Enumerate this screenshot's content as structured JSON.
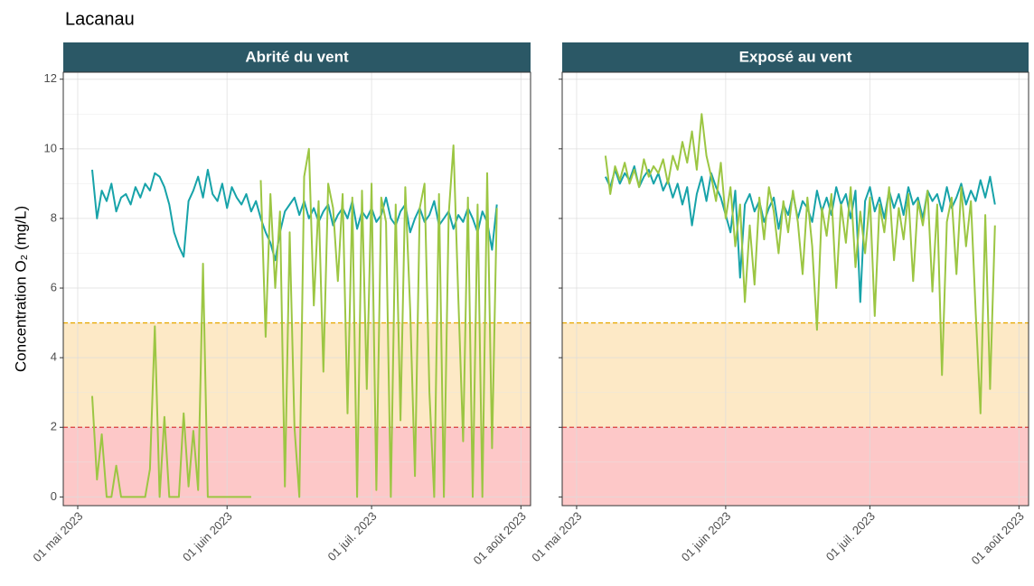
{
  "chart_data": {
    "type": "line",
    "title": "Lacanau",
    "ylabel": "Concentration  O₂ (mg/L)",
    "xlim": [
      "2023-04-28",
      "2023-08-03"
    ],
    "xticks": [
      {
        "value": "2023-05-01",
        "label": "01 mai 2023"
      },
      {
        "value": "2023-06-01",
        "label": "01 juin 2023"
      },
      {
        "value": "2023-07-01",
        "label": "01 juil. 2023"
      },
      {
        "value": "2023-08-01",
        "label": "01 août 2023"
      }
    ],
    "ylim": [
      -0.25,
      12.2
    ],
    "yticks": [
      0,
      2,
      4,
      6,
      8,
      10,
      12
    ],
    "yminor": [
      1,
      3,
      5,
      7,
      9,
      11
    ],
    "grid": true,
    "bands": [
      {
        "from": 2,
        "to": 5,
        "color": "#fde9c6"
      },
      {
        "to": 2,
        "color": "#fdc8c8"
      }
    ],
    "hlines": [
      {
        "value": 5,
        "color": "#e6a800"
      },
      {
        "value": 2,
        "color": "#d93b3b"
      }
    ],
    "x": [
      "2023-05-04",
      "2023-05-05",
      "2023-05-06",
      "2023-05-07",
      "2023-05-08",
      "2023-05-09",
      "2023-05-10",
      "2023-05-11",
      "2023-05-12",
      "2023-05-13",
      "2023-05-14",
      "2023-05-15",
      "2023-05-16",
      "2023-05-17",
      "2023-05-18",
      "2023-05-19",
      "2023-05-20",
      "2023-05-21",
      "2023-05-22",
      "2023-05-23",
      "2023-05-24",
      "2023-05-25",
      "2023-05-26",
      "2023-05-27",
      "2023-05-28",
      "2023-05-29",
      "2023-05-30",
      "2023-05-31",
      "2023-06-01",
      "2023-06-02",
      "2023-06-03",
      "2023-06-04",
      "2023-06-05",
      "2023-06-06",
      "2023-06-07",
      "2023-06-08",
      "2023-06-09",
      "2023-06-10",
      "2023-06-11",
      "2023-06-12",
      "2023-06-13",
      "2023-06-14",
      "2023-06-15",
      "2023-06-16",
      "2023-06-17",
      "2023-06-18",
      "2023-06-19",
      "2023-06-20",
      "2023-06-21",
      "2023-06-22",
      "2023-06-23",
      "2023-06-24",
      "2023-06-25",
      "2023-06-26",
      "2023-06-27",
      "2023-06-28",
      "2023-06-29",
      "2023-06-30",
      "2023-07-01",
      "2023-07-02",
      "2023-07-03",
      "2023-07-04",
      "2023-07-05",
      "2023-07-06",
      "2023-07-07",
      "2023-07-08",
      "2023-07-09",
      "2023-07-10",
      "2023-07-11",
      "2023-07-12",
      "2023-07-13",
      "2023-07-14",
      "2023-07-15",
      "2023-07-16",
      "2023-07-17",
      "2023-07-18",
      "2023-07-19",
      "2023-07-20",
      "2023-07-21",
      "2023-07-22",
      "2023-07-23",
      "2023-07-24",
      "2023-07-25",
      "2023-07-26",
      "2023-07-27"
    ],
    "facets": [
      {
        "strip": "Abrité du vent",
        "series": [
          {
            "color": "#17a3a9",
            "values": [
              9.4,
              8.0,
              8.8,
              8.5,
              9.0,
              8.2,
              8.6,
              8.7,
              8.4,
              8.9,
              8.6,
              9.0,
              8.8,
              9.3,
              9.2,
              8.9,
              8.4,
              7.6,
              7.2,
              6.9,
              8.5,
              8.8,
              9.2,
              8.6,
              9.4,
              8.7,
              8.5,
              9.0,
              8.3,
              8.9,
              8.6,
              8.4,
              8.7,
              8.2,
              8.5,
              8.0,
              7.6,
              7.3,
              6.8,
              7.6,
              8.2,
              8.4,
              8.6,
              8.1,
              8.5,
              8.0,
              8.3,
              7.9,
              8.2,
              8.4,
              7.8,
              8.1,
              8.3,
              8.0,
              8.5,
              7.7,
              8.2,
              8.0,
              8.3,
              7.9,
              8.1,
              8.6,
              8.0,
              7.8,
              8.2,
              8.4,
              7.6,
              8.0,
              8.3,
              7.9,
              8.1,
              8.5,
              7.8,
              8.0,
              8.2,
              7.7,
              8.1,
              7.9,
              8.3,
              8.0,
              7.6,
              8.2,
              7.9,
              7.1,
              8.4
            ]
          },
          {
            "color": "#9cc643",
            "values": [
              2.9,
              0.5,
              1.8,
              0,
              0,
              0.9,
              0,
              0,
              0,
              0,
              0,
              0,
              0.8,
              4.9,
              0,
              2.3,
              0,
              0,
              0,
              2.4,
              0.3,
              1.9,
              0.2,
              6.7,
              0,
              0,
              0,
              0,
              0,
              0,
              0,
              0,
              0,
              0,
              null,
              9.1,
              4.6,
              8.7,
              6.0,
              8.2,
              0.3,
              7.6,
              2.0,
              0,
              9.2,
              10.0,
              5.5,
              8.5,
              3.6,
              9.0,
              8.3,
              6.2,
              8.7,
              2.4,
              8.6,
              0,
              8.8,
              3.1,
              9.0,
              0.2,
              8.6,
              7.9,
              0,
              8.4,
              2.2,
              8.9,
              5.4,
              0.6,
              8.3,
              9.0,
              3.0,
              0,
              8.7,
              0,
              8.1,
              10.1,
              5.7,
              1.6,
              8.6,
              0,
              8.4,
              0,
              9.3,
              1.4,
              8.3
            ]
          }
        ]
      },
      {
        "strip": "Exposé au vent",
        "series": [
          {
            "color": "#17a3a9",
            "values": [
              null,
              null,
              null,
              9.2,
              8.9,
              9.4,
              9.0,
              9.3,
              9.1,
              9.5,
              8.9,
              9.2,
              9.4,
              9.0,
              9.3,
              8.8,
              9.1,
              8.6,
              9.0,
              8.4,
              8.9,
              7.8,
              8.7,
              9.2,
              8.5,
              9.3,
              8.9,
              8.6,
              8.1,
              7.6,
              8.8,
              6.3,
              8.4,
              8.7,
              8.2,
              8.5,
              7.9,
              8.3,
              8.6,
              7.7,
              8.4,
              8.1,
              8.7,
              8.0,
              8.5,
              8.3,
              7.9,
              8.8,
              8.2,
              8.6,
              8.1,
              8.9,
              8.4,
              8.7,
              8.0,
              8.8,
              5.6,
              8.5,
              8.9,
              8.2,
              8.6,
              8.0,
              8.8,
              8.3,
              8.7,
              8.1,
              8.9,
              8.4,
              8.6,
              8.0,
              8.8,
              8.5,
              8.7,
              8.2,
              8.9,
              8.3,
              8.6,
              9.0,
              8.4,
              8.8,
              8.5,
              9.1,
              8.6,
              9.2,
              8.4
            ]
          },
          {
            "color": "#9cc643",
            "values": [
              null,
              null,
              null,
              9.8,
              8.7,
              9.5,
              9.1,
              9.6,
              9.0,
              9.4,
              8.9,
              9.7,
              9.2,
              9.5,
              9.3,
              9.7,
              9.0,
              9.8,
              9.4,
              10.2,
              9.6,
              10.5,
              9.4,
              11.0,
              9.8,
              9.2,
              8.5,
              9.6,
              8.0,
              8.9,
              7.2,
              8.4,
              5.6,
              7.8,
              6.1,
              8.6,
              7.4,
              8.9,
              8.2,
              7.0,
              8.5,
              7.6,
              8.8,
              7.9,
              6.4,
              8.6,
              7.2,
              4.8,
              8.3,
              7.5,
              8.7,
              6.0,
              8.4,
              7.3,
              8.9,
              6.6,
              8.2,
              7.0,
              8.6,
              5.2,
              8.4,
              7.6,
              8.9,
              6.8,
              8.3,
              7.4,
              8.7,
              6.2,
              8.5,
              7.8,
              8.8,
              5.9,
              8.4,
              3.5,
              7.9,
              8.6,
              6.4,
              8.9,
              7.2,
              8.5,
              5.3,
              2.4,
              8.1,
              3.1,
              7.8
            ]
          }
        ]
      }
    ]
  }
}
